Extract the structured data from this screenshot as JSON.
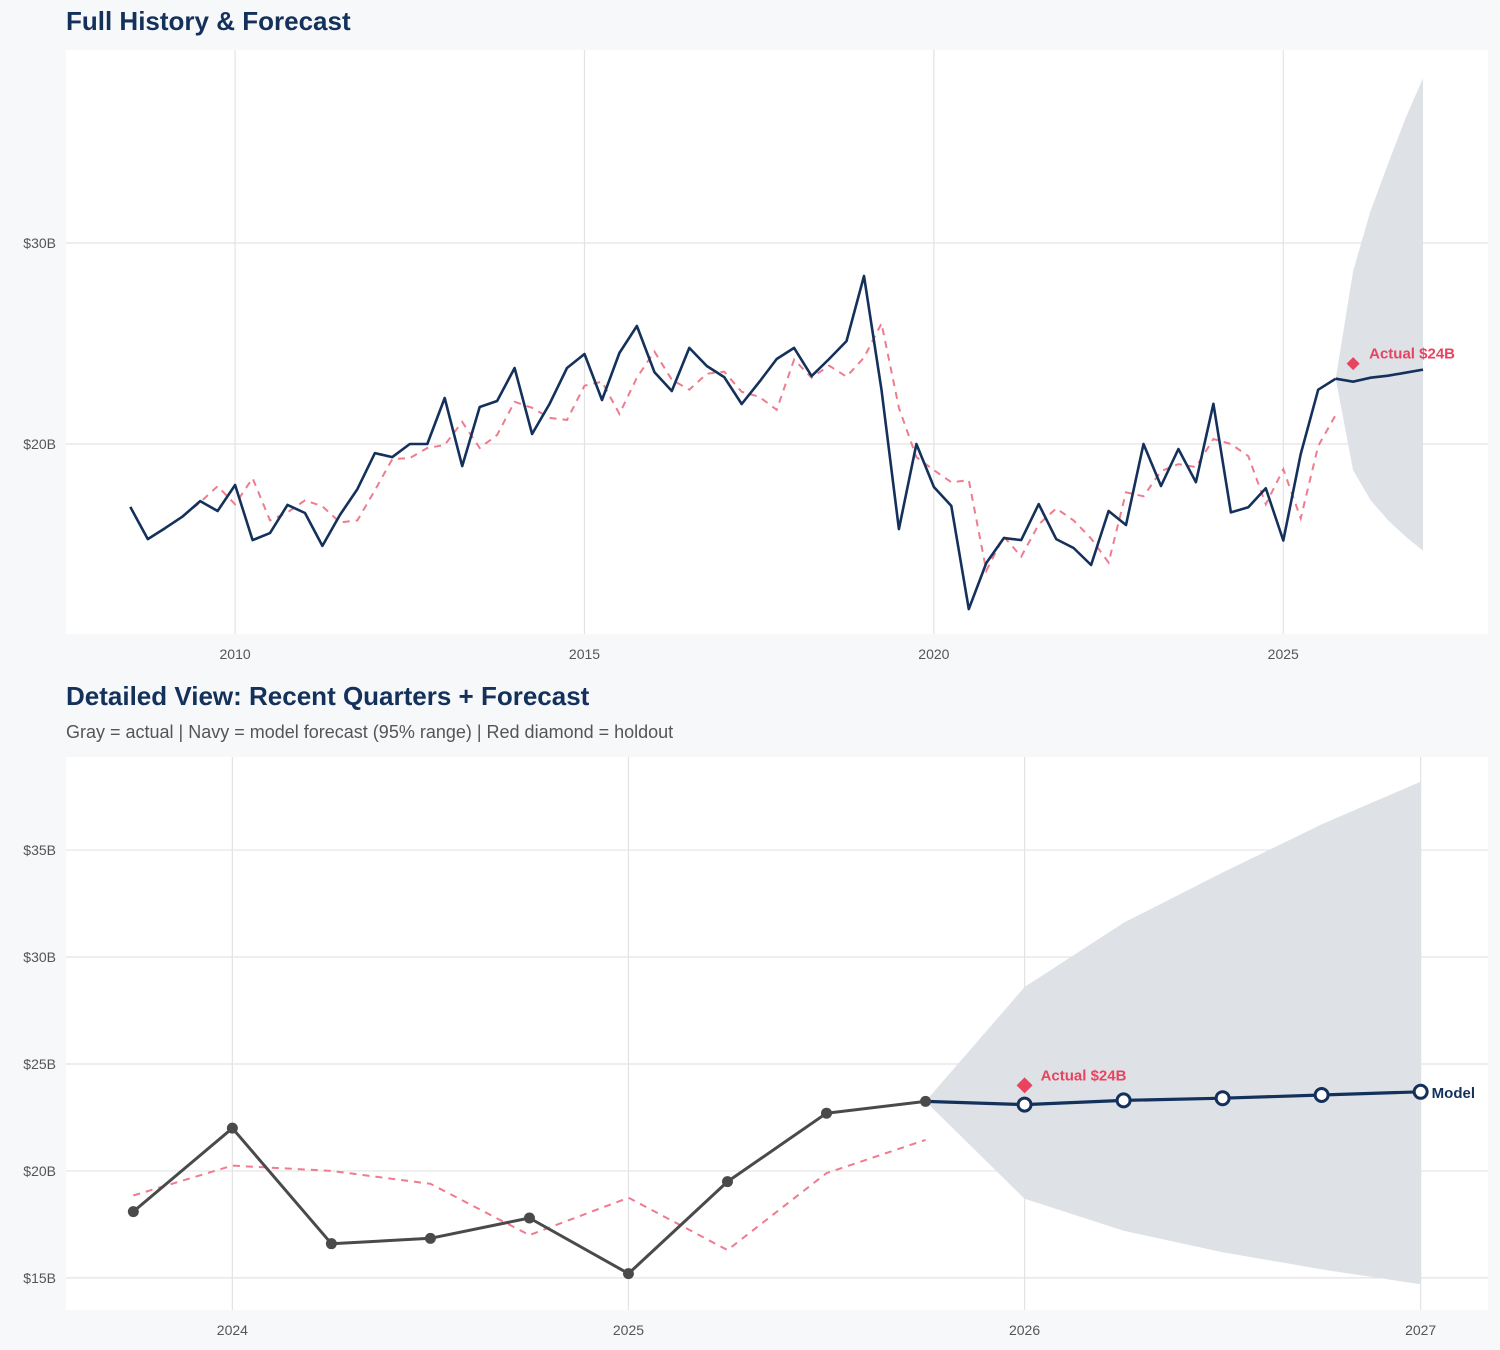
{
  "colors": {
    "navy": "#14315c",
    "actual_gray": "#4a4a4a",
    "holdout_red": "#e8435f",
    "dashed_pink": "#ef7b8e",
    "band": "#dce0e6",
    "grid": "#e3e3e3",
    "plot_bg": "#ffffff",
    "page_bg": "#f7f8fa"
  },
  "chart_data": [
    {
      "id": "top",
      "type": "line",
      "title": "Full History & Forecast",
      "xlabel": "",
      "ylabel": "",
      "xlim": [
        2007.58,
        2027.93
      ],
      "ylim": [
        10.55,
        39.6
      ],
      "x_ticks": [
        2010,
        2015,
        2020,
        2025
      ],
      "x_tick_labels": [
        "2010",
        "2015",
        "2020",
        "2025"
      ],
      "y_ticks": [
        20,
        30
      ],
      "y_tick_labels": [
        "$20B",
        "$30B"
      ],
      "grid": true,
      "x_from": 2008.5
    },
    {
      "id": "detail",
      "type": "line",
      "title": "Detailed View: Recent Quarters + Forecast",
      "subtitle": "Gray = actual  |  Navy = model forecast (95% range)  |  Red diamond = holdout",
      "xlabel": "",
      "ylabel": "",
      "xlim": [
        2023.58,
        2027.17
      ],
      "ylim": [
        13.5,
        39.35
      ],
      "x_ticks": [
        2024,
        2025,
        2026,
        2027
      ],
      "x_tick_labels": [
        "2024",
        "2025",
        "2026",
        "2027"
      ],
      "y_ticks": [
        15,
        20,
        25,
        30,
        35
      ],
      "y_tick_labels": [
        "$15B",
        "$20B",
        "$25B",
        "$30B",
        "$35B"
      ],
      "grid": true,
      "x_from": 2023.75,
      "model_label": "Model"
    }
  ],
  "series": {
    "actual": [
      [
        2008.5,
        16.87
      ],
      [
        2008.75,
        15.27
      ],
      [
        2009,
        15.82
      ],
      [
        2009.25,
        16.4
      ],
      [
        2009.5,
        17.16
      ],
      [
        2009.75,
        16.67
      ],
      [
        2010,
        17.96
      ],
      [
        2010.25,
        15.22
      ],
      [
        2010.5,
        15.57
      ],
      [
        2010.75,
        16.97
      ],
      [
        2011,
        16.57
      ],
      [
        2011.25,
        14.93
      ],
      [
        2011.5,
        16.47
      ],
      [
        2011.75,
        17.76
      ],
      [
        2012,
        19.55
      ],
      [
        2012.25,
        19.35
      ],
      [
        2012.5,
        20.0
      ],
      [
        2012.75,
        20.0
      ],
      [
        2013,
        22.29
      ],
      [
        2013.25,
        18.9
      ],
      [
        2013.5,
        21.84
      ],
      [
        2013.75,
        22.14
      ],
      [
        2014,
        23.78
      ],
      [
        2014.25,
        20.5
      ],
      [
        2014.5,
        21.99
      ],
      [
        2014.75,
        23.78
      ],
      [
        2015,
        24.48
      ],
      [
        2015.25,
        22.19
      ],
      [
        2015.5,
        24.53
      ],
      [
        2015.75,
        25.87
      ],
      [
        2016,
        23.58
      ],
      [
        2016.25,
        22.64
      ],
      [
        2016.5,
        24.78
      ],
      [
        2016.75,
        23.88
      ],
      [
        2017,
        23.33
      ],
      [
        2017.25,
        21.99
      ],
      [
        2017.5,
        23.08
      ],
      [
        2017.75,
        24.23
      ],
      [
        2018,
        24.78
      ],
      [
        2018.25,
        23.38
      ],
      [
        2018.5,
        24.23
      ],
      [
        2018.75,
        25.12
      ],
      [
        2019,
        28.36
      ],
      [
        2019.25,
        22.69
      ],
      [
        2019.5,
        15.77
      ],
      [
        2019.75,
        20.0
      ],
      [
        2020,
        17.86
      ],
      [
        2020.25,
        16.92
      ],
      [
        2020.5,
        11.79
      ],
      [
        2020.75,
        14.08
      ],
      [
        2021,
        15.32
      ],
      [
        2021.25,
        15.22
      ],
      [
        2021.5,
        17.01
      ],
      [
        2021.75,
        15.27
      ],
      [
        2022,
        14.83
      ],
      [
        2022.25,
        13.98
      ],
      [
        2022.5,
        16.67
      ],
      [
        2022.75,
        15.97
      ],
      [
        2023,
        20.0
      ],
      [
        2023.25,
        17.91
      ],
      [
        2023.5,
        19.75
      ],
      [
        2023.75,
        18.1
      ],
      [
        2024,
        22.0
      ],
      [
        2024.25,
        16.6
      ],
      [
        2024.5,
        16.85
      ],
      [
        2024.75,
        17.8
      ],
      [
        2025,
        15.2
      ],
      [
        2025.25,
        19.5
      ],
      [
        2025.5,
        22.7
      ],
      [
        2025.75,
        23.25
      ]
    ],
    "dashed": [
      [
        2009.25,
        16.4
      ],
      [
        2009.5,
        17.1
      ],
      [
        2009.75,
        17.9
      ],
      [
        2010,
        17.0
      ],
      [
        2010.25,
        18.3
      ],
      [
        2010.5,
        16.2
      ],
      [
        2010.75,
        16.6
      ],
      [
        2011,
        17.2
      ],
      [
        2011.25,
        16.9
      ],
      [
        2011.5,
        16.1
      ],
      [
        2011.75,
        16.2
      ],
      [
        2012,
        17.7
      ],
      [
        2012.25,
        19.25
      ],
      [
        2012.5,
        19.3
      ],
      [
        2012.75,
        19.8
      ],
      [
        2013,
        19.95
      ],
      [
        2013.25,
        21.1
      ],
      [
        2013.5,
        19.8
      ],
      [
        2013.75,
        20.45
      ],
      [
        2014,
        22.1
      ],
      [
        2014.25,
        21.8
      ],
      [
        2014.5,
        21.3
      ],
      [
        2014.75,
        21.2
      ],
      [
        2015,
        22.9
      ],
      [
        2015.25,
        23.1
      ],
      [
        2015.5,
        21.5
      ],
      [
        2015.75,
        23.3
      ],
      [
        2016,
        24.6
      ],
      [
        2016.25,
        23.2
      ],
      [
        2016.5,
        22.7
      ],
      [
        2016.75,
        23.5
      ],
      [
        2017,
        23.6
      ],
      [
        2017.25,
        22.6
      ],
      [
        2017.5,
        22.35
      ],
      [
        2017.75,
        21.7
      ],
      [
        2018,
        24.2
      ],
      [
        2018.25,
        23.3
      ],
      [
        2018.5,
        23.9
      ],
      [
        2018.75,
        23.35
      ],
      [
        2019,
        24.3
      ],
      [
        2019.25,
        26.0
      ],
      [
        2019.5,
        21.8
      ],
      [
        2019.75,
        19.35
      ],
      [
        2020,
        18.7
      ],
      [
        2020.25,
        18.1
      ],
      [
        2020.5,
        18.2
      ],
      [
        2020.75,
        13.7
      ],
      [
        2021,
        15.4
      ],
      [
        2021.25,
        14.4
      ],
      [
        2021.5,
        16.0
      ],
      [
        2021.75,
        16.8
      ],
      [
        2022,
        16.2
      ],
      [
        2022.25,
        15.3
      ],
      [
        2022.5,
        14.1
      ],
      [
        2022.75,
        17.6
      ],
      [
        2023,
        17.4
      ],
      [
        2023.25,
        18.65
      ],
      [
        2023.5,
        19.0
      ],
      [
        2023.75,
        18.85
      ],
      [
        2024,
        20.25
      ],
      [
        2024.25,
        20.0
      ],
      [
        2024.5,
        19.4
      ],
      [
        2024.75,
        17.0
      ],
      [
        2025,
        18.75
      ],
      [
        2025.25,
        16.3
      ],
      [
        2025.5,
        19.9
      ],
      [
        2025.75,
        21.45
      ]
    ],
    "forecast": [
      [
        2025.75,
        23.25
      ],
      [
        2026,
        23.1
      ],
      [
        2026.25,
        23.3
      ],
      [
        2026.5,
        23.4
      ],
      [
        2026.75,
        23.55
      ],
      [
        2027,
        23.7
      ]
    ],
    "band_upper": [
      [
        2025.75,
        23.25
      ],
      [
        2026,
        28.6
      ],
      [
        2026.25,
        31.6
      ],
      [
        2026.5,
        33.95
      ],
      [
        2026.75,
        36.2
      ],
      [
        2027,
        38.2
      ]
    ],
    "band_lower": [
      [
        2025.75,
        23.25
      ],
      [
        2026,
        18.7
      ],
      [
        2026.25,
        17.2
      ],
      [
        2026.5,
        16.2
      ],
      [
        2026.75,
        15.4
      ],
      [
        2027,
        14.7
      ]
    ],
    "holdout": {
      "x": 2026,
      "y": 24.0,
      "label": "Actual $24B"
    }
  }
}
